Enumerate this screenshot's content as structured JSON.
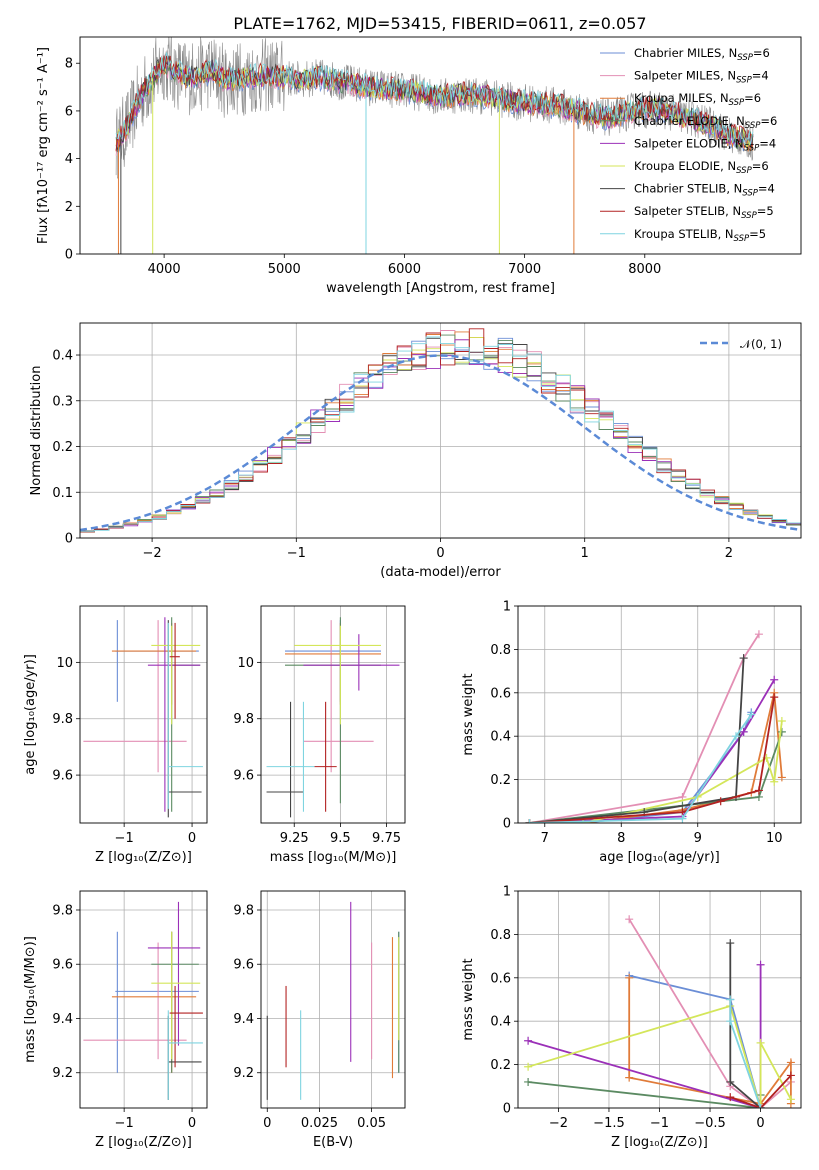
{
  "figure": {
    "title": "PLATE=1762, MJD=53415, FIBERID=0611, z=0.057"
  },
  "colors": {
    "Chabrier MILES": "#6b8ed6",
    "Salpeter MILES": "#e38fb4",
    "Kroupa MILES": "#e07b39",
    "Chabrier ELODIE": "#5b8a62",
    "Salpeter ELODIE": "#9b30b8",
    "Kroupa ELODIE": "#d4e65a",
    "Chabrier STELIB": "#444444",
    "Salpeter STELIB": "#b22222",
    "Kroupa STELIB": "#7fd4e0",
    "data": "#888888",
    "normal": "#5b8ad6"
  },
  "chart_data": [
    {
      "id": "spectrum",
      "type": "line",
      "xlabel": "wavelength [Angstrom, rest frame]",
      "ylabel": "Flux [fλ10⁻¹⁷ erg cm⁻² s⁻¹ A⁻¹]",
      "xlim": [
        3300,
        9300
      ],
      "ylim": [
        0,
        9.1
      ],
      "xticks": [
        4000,
        5000,
        6000,
        7000,
        8000
      ],
      "yticks": [
        0,
        2,
        4,
        6,
        8
      ],
      "grid": false,
      "legend_position": "upper-right",
      "continuum": {
        "x": [
          3600,
          3700,
          3800,
          3900,
          4000,
          4100,
          4200,
          4300,
          4400,
          4500,
          4700,
          4900,
          5100,
          5300,
          5500,
          5700,
          5900,
          6100,
          6300,
          6500,
          6700,
          6900,
          7100,
          7300,
          7500,
          7700,
          7900,
          8100,
          8300,
          8500,
          8700,
          8900
        ],
        "y": [
          4.6,
          5.4,
          6.6,
          7.3,
          8.0,
          7.6,
          7.4,
          7.5,
          7.7,
          7.3,
          7.4,
          7.5,
          7.3,
          7.4,
          7.2,
          7.0,
          6.9,
          6.8,
          6.6,
          6.7,
          6.6,
          6.4,
          6.3,
          6.2,
          5.9,
          5.7,
          6.0,
          6.1,
          5.8,
          5.5,
          5.0,
          4.7
        ]
      },
      "legend": [
        {
          "label": "Chabrier MILES, N",
          "sub": "SSP",
          "count": "=6",
          "color_key": "Chabrier MILES"
        },
        {
          "label": "Salpeter MILES, N",
          "sub": "SSP",
          "count": "=4",
          "color_key": "Salpeter MILES"
        },
        {
          "label": "Kroupa MILES, N",
          "sub": "SSP",
          "count": "=6",
          "color_key": "Kroupa MILES"
        },
        {
          "label": "Chabrier ELODIE, N",
          "sub": "SSP",
          "count": "=6",
          "color_key": "Chabrier ELODIE"
        },
        {
          "label": "Salpeter ELODIE, N",
          "sub": "SSP",
          "count": "=4",
          "color_key": "Salpeter ELODIE"
        },
        {
          "label": "Kroupa ELODIE, N",
          "sub": "SSP",
          "count": "=6",
          "color_key": "Kroupa ELODIE"
        },
        {
          "label": "Chabrier STELIB, N",
          "sub": "SSP",
          "count": "=4",
          "color_key": "Chabrier STELIB"
        },
        {
          "label": "Salpeter STELIB, N",
          "sub": "SSP",
          "count": "=5",
          "color_key": "Salpeter STELIB"
        },
        {
          "label": "Kroupa STELIB, N",
          "sub": "SSP",
          "count": "=5",
          "color_key": "Kroupa STELIB"
        }
      ]
    },
    {
      "id": "residuals",
      "type": "line",
      "xlabel": "(data-model)/error",
      "ylabel": "Normed distribution",
      "xlim": [
        -2.5,
        2.5
      ],
      "ylim": [
        0,
        0.47
      ],
      "xticks": [
        -2,
        -1,
        0,
        1,
        2
      ],
      "yticks": [
        0.0,
        0.1,
        0.2,
        0.3,
        0.4
      ],
      "grid": true,
      "legend_position": "upper-right",
      "legend_label": "𝒩(0, 1)",
      "bin_width": 0.1
    },
    {
      "id": "z-age",
      "type": "scatter",
      "xlabel": "Z [log₁₀(Z/Z⊙)]",
      "ylabel": "age  [log₁₀(age/yr)]",
      "xlim": [
        -1.65,
        0.22
      ],
      "ylim": [
        9.43,
        10.2
      ],
      "xticks": [
        -1,
        0
      ],
      "yticks": [
        9.6,
        9.8,
        10.0
      ],
      "grid": true,
      "points": [
        {
          "s": "Chabrier MILES",
          "x": -1.1,
          "x0": -1.13,
          "x1": 0.1,
          "y": 10.04,
          "y0": 9.86,
          "y1": 10.15
        },
        {
          "s": "Salpeter MILES",
          "x": -0.5,
          "x0": -1.6,
          "x1": -0.08,
          "y": 9.72,
          "y0": 9.61,
          "y1": 10.15
        },
        {
          "s": "Kroupa MILES",
          "x": -0.3,
          "x0": -1.18,
          "x1": 0.06,
          "y": 10.04,
          "y0": 9.85,
          "y1": 10.14
        },
        {
          "s": "Chabrier ELODIE",
          "x": -0.3,
          "x0": -0.3,
          "x1": 0.12,
          "y": 9.99,
          "y0": 9.47,
          "y1": 10.16
        },
        {
          "s": "Salpeter ELODIE",
          "x": -0.4,
          "x0": -0.65,
          "x1": 0.12,
          "y": 9.99,
          "y0": 9.47,
          "y1": 10.16
        },
        {
          "s": "Kroupa ELODIE",
          "x": -0.3,
          "x0": -0.6,
          "x1": 0.12,
          "y": 10.06,
          "y0": 9.78,
          "y1": 10.13
        },
        {
          "s": "Chabrier STELIB",
          "x": -0.35,
          "x0": -0.35,
          "x1": 0.14,
          "y": 9.54,
          "y0": 9.45,
          "y1": 10.15
        },
        {
          "s": "Salpeter STELIB",
          "x": -0.25,
          "x0": -0.33,
          "x1": -0.18,
          "y": 10.02,
          "y0": 9.8,
          "y1": 10.14
        },
        {
          "s": "Kroupa STELIB",
          "x": -0.35,
          "x0": -0.35,
          "x1": 0.16,
          "y": 9.63,
          "y0": 9.48,
          "y1": 10.14
        }
      ]
    },
    {
      "id": "mass-age",
      "type": "scatter",
      "xlabel": "mass [log₁₀(M/M⊙)]",
      "ylabel": "",
      "xlim": [
        9.07,
        9.85
      ],
      "ylim": [
        9.43,
        10.2
      ],
      "xticks": [
        9.25,
        9.5,
        9.75
      ],
      "yticks": [
        9.6,
        9.8,
        10.0
      ],
      "grid": true,
      "points": [
        {
          "s": "Chabrier MILES",
          "x": 9.5,
          "x0": 9.2,
          "x1": 9.72,
          "y": 10.04,
          "y0": 9.86,
          "y1": 10.15
        },
        {
          "s": "Salpeter MILES",
          "x": 9.45,
          "x0": 9.3,
          "x1": 9.68,
          "y": 9.72,
          "y0": 9.61,
          "y1": 10.15
        },
        {
          "s": "Kroupa MILES",
          "x": 9.5,
          "x0": 9.2,
          "x1": 9.72,
          "y": 10.03,
          "y0": 9.85,
          "y1": 10.14
        },
        {
          "s": "Chabrier ELODIE",
          "x": 9.5,
          "x0": 9.2,
          "x1": 9.72,
          "y": 9.99,
          "y0": 9.5,
          "y1": 10.16
        },
        {
          "s": "Salpeter ELODIE",
          "x": 9.6,
          "x0": 9.3,
          "x1": 9.82,
          "y": 9.99,
          "y0": 9.9,
          "y1": 10.1
        },
        {
          "s": "Kroupa ELODIE",
          "x": 9.5,
          "x0": 9.25,
          "x1": 9.72,
          "y": 10.06,
          "y0": 9.78,
          "y1": 10.13
        },
        {
          "s": "Chabrier STELIB",
          "x": 9.23,
          "x0": 9.1,
          "x1": 9.3,
          "y": 9.54,
          "y0": 9.45,
          "y1": 9.86
        },
        {
          "s": "Salpeter STELIB",
          "x": 9.42,
          "x0": 9.36,
          "x1": 9.48,
          "y": 9.63,
          "y0": 9.47,
          "y1": 9.86
        },
        {
          "s": "Kroupa STELIB",
          "x": 9.3,
          "x0": 9.1,
          "x1": 9.36,
          "y": 9.63,
          "y0": 9.47,
          "y1": 9.86
        }
      ]
    },
    {
      "id": "age-weight",
      "type": "line",
      "xlabel": "age  [log₁₀(age/yr)]",
      "ylabel": "mass weight",
      "xlim": [
        6.65,
        10.35
      ],
      "ylim": [
        0,
        1.0
      ],
      "xticks": [
        7,
        8,
        9,
        10
      ],
      "yticks": [
        0.0,
        0.2,
        0.4,
        0.6,
        0.8,
        1.0
      ],
      "grid": true,
      "series": [
        {
          "s": "Chabrier MILES",
          "x": [
            6.8,
            7.5,
            8.8,
            9.6,
            9.7
          ],
          "y": [
            0.0,
            0.0,
            0.05,
            0.42,
            0.51
          ]
        },
        {
          "s": "Salpeter MILES",
          "x": [
            6.8,
            8.8,
            9.6,
            9.8
          ],
          "y": [
            0.0,
            0.12,
            0.76,
            0.87
          ]
        },
        {
          "s": "Kroupa MILES",
          "x": [
            6.8,
            7.5,
            8.8,
            9.7,
            10.0,
            10.1
          ],
          "y": [
            0.0,
            0.0,
            0.06,
            0.14,
            0.6,
            0.21
          ]
        },
        {
          "s": "Chabrier ELODIE",
          "x": [
            6.8,
            8.8,
            9.8,
            10.1
          ],
          "y": [
            0.0,
            0.08,
            0.12,
            0.42
          ]
        },
        {
          "s": "Salpeter ELODIE",
          "x": [
            6.8,
            8.8,
            9.6,
            10.0
          ],
          "y": [
            0.0,
            0.03,
            0.42,
            0.66
          ]
        },
        {
          "s": "Kroupa ELODIE",
          "x": [
            6.8,
            7.5,
            9.0,
            9.9,
            10.0,
            10.1
          ],
          "y": [
            0.0,
            0.0,
            0.12,
            0.3,
            0.19,
            0.47
          ]
        },
        {
          "s": "Chabrier STELIB",
          "x": [
            6.8,
            8.3,
            9.5,
            9.6
          ],
          "y": [
            0.0,
            0.05,
            0.12,
            0.76
          ]
        },
        {
          "s": "Salpeter STELIB",
          "x": [
            6.8,
            8.8,
            9.3,
            9.8,
            10.0
          ],
          "y": [
            0.0,
            0.05,
            0.1,
            0.15,
            0.58
          ]
        },
        {
          "s": "Kroupa STELIB",
          "x": [
            6.8,
            8.8,
            9.5,
            9.7
          ],
          "y": [
            0.0,
            0.02,
            0.4,
            0.5
          ]
        }
      ]
    },
    {
      "id": "z-mass",
      "type": "scatter",
      "xlabel": "Z [log₁₀(Z/Z⊙)]",
      "ylabel": "mass [log₁₀(M/M⊙)]",
      "xlim": [
        -1.65,
        0.22
      ],
      "ylim": [
        9.07,
        9.87
      ],
      "xticks": [
        -1,
        0
      ],
      "yticks": [
        9.2,
        9.4,
        9.6,
        9.8
      ],
      "grid": true,
      "points": [
        {
          "s": "Chabrier MILES",
          "x": -1.1,
          "x0": -1.13,
          "x1": 0.1,
          "y": 9.5,
          "y0": 9.2,
          "y1": 9.72
        },
        {
          "s": "Salpeter MILES",
          "x": -0.5,
          "x0": -1.6,
          "x1": -0.08,
          "y": 9.32,
          "y0": 9.25,
          "y1": 9.68
        },
        {
          "s": "Kroupa MILES",
          "x": -0.3,
          "x0": -1.18,
          "x1": 0.06,
          "y": 9.48,
          "y0": 9.2,
          "y1": 9.72
        },
        {
          "s": "Chabrier ELODIE",
          "x": -0.3,
          "x0": -0.6,
          "x1": 0.1,
          "y": 9.6,
          "y0": 9.2,
          "y1": 9.72
        },
        {
          "s": "Salpeter ELODIE",
          "x": -0.2,
          "x0": -0.65,
          "x1": 0.12,
          "y": 9.66,
          "y0": 9.3,
          "y1": 9.83
        },
        {
          "s": "Kroupa ELODIE",
          "x": -0.3,
          "x0": -0.6,
          "x1": 0.12,
          "y": 9.53,
          "y0": 9.25,
          "y1": 9.72
        },
        {
          "s": "Chabrier STELIB",
          "x": -0.35,
          "x0": -0.35,
          "x1": 0.14,
          "y": 9.24,
          "y0": 9.1,
          "y1": 9.41
        },
        {
          "s": "Salpeter STELIB",
          "x": -0.25,
          "x0": -0.33,
          "x1": 0.16,
          "y": 9.42,
          "y0": 9.22,
          "y1": 9.52
        },
        {
          "s": "Kroupa STELIB",
          "x": -0.35,
          "x0": -0.35,
          "x1": 0.16,
          "y": 9.31,
          "y0": 9.1,
          "y1": 9.43
        }
      ]
    },
    {
      "id": "ebv-mass",
      "type": "scatter",
      "xlabel": "E(B-V)",
      "ylabel": "",
      "xlim": [
        -0.003,
        0.066
      ],
      "ylim": [
        9.07,
        9.87
      ],
      "xticks": [
        0.0,
        0.025,
        0.05
      ],
      "yticks": [
        9.2,
        9.4,
        9.6,
        9.8
      ],
      "grid": true,
      "points": [
        {
          "s": "Chabrier MILES",
          "x": 0.063,
          "y0": 9.2,
          "y1": 9.72
        },
        {
          "s": "Salpeter MILES",
          "x": 0.05,
          "y0": 9.25,
          "y1": 9.68
        },
        {
          "s": "Kroupa MILES",
          "x": 0.06,
          "y0": 9.18,
          "y1": 9.7
        },
        {
          "s": "Chabrier ELODIE",
          "x": 0.063,
          "y0": 9.2,
          "y1": 9.72
        },
        {
          "s": "Salpeter ELODIE",
          "x": 0.04,
          "y0": 9.24,
          "y1": 9.83
        },
        {
          "s": "Kroupa ELODIE",
          "x": 0.063,
          "y0": 9.32,
          "y1": 9.7
        },
        {
          "s": "Chabrier STELIB",
          "x": 0.0,
          "y0": 9.1,
          "y1": 9.41
        },
        {
          "s": "Salpeter STELIB",
          "x": 0.009,
          "y0": 9.22,
          "y1": 9.52
        },
        {
          "s": "Kroupa STELIB",
          "x": 0.016,
          "y0": 9.1,
          "y1": 9.43
        }
      ]
    },
    {
      "id": "z-weight",
      "type": "line",
      "xlabel": "Z [log₁₀(Z/Z⊙)]",
      "ylabel": "mass weight",
      "xlim": [
        -2.4,
        0.4
      ],
      "ylim": [
        0,
        1.0
      ],
      "xticks": [
        -2.0,
        -1.5,
        -1.0,
        -0.5,
        0.0
      ],
      "yticks": [
        0.0,
        0.2,
        0.4,
        0.6,
        0.8,
        1.0
      ],
      "grid": true,
      "series": [
        {
          "s": "Chabrier MILES",
          "x": [
            -1.3,
            -0.3,
            0.0
          ],
          "y": [
            0.61,
            0.5,
            0.0
          ]
        },
        {
          "s": "Salpeter MILES",
          "x": [
            -1.3,
            -0.3,
            0.0,
            0.3
          ],
          "y": [
            0.87,
            0.1,
            0.0,
            0.12
          ]
        },
        {
          "s": "Kroupa MILES",
          "x": [
            -1.3,
            -1.3,
            0.0,
            0.3,
            0.3
          ],
          "y": [
            0.6,
            0.14,
            0.02,
            0.21,
            0.02
          ]
        },
        {
          "s": "Chabrier ELODIE",
          "x": [
            -2.3,
            0.0,
            0.0
          ],
          "y": [
            0.12,
            0.0,
            0.06
          ]
        },
        {
          "s": "Salpeter ELODIE",
          "x": [
            -2.3,
            0.0,
            0.0
          ],
          "y": [
            0.31,
            0.0,
            0.66
          ]
        },
        {
          "s": "Kroupa ELODIE",
          "x": [
            -2.3,
            -0.3,
            0.0,
            0.0,
            0.3
          ],
          "y": [
            0.19,
            0.47,
            0.0,
            0.3,
            0.04
          ]
        },
        {
          "s": "Chabrier STELIB",
          "x": [
            -0.3,
            -0.3,
            0.0
          ],
          "y": [
            0.76,
            0.12,
            0.0
          ]
        },
        {
          "s": "Salpeter STELIB",
          "x": [
            -0.3,
            0.0,
            0.3
          ],
          "y": [
            0.05,
            0.0,
            0.15
          ]
        },
        {
          "s": "Kroupa STELIB",
          "x": [
            -0.3,
            -0.3,
            0.0
          ],
          "y": [
            0.5,
            0.4,
            0.0
          ]
        }
      ]
    }
  ]
}
